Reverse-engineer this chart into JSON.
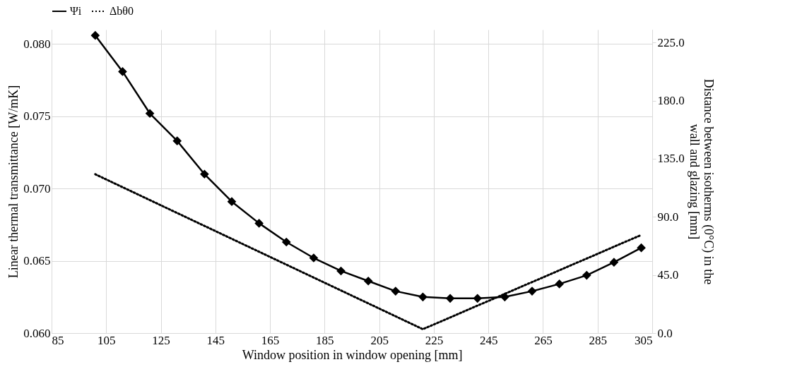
{
  "chart_data": {
    "type": "line",
    "xlabel": "Window position in window opening [mm]",
    "ylabel": "Linear thermal transmittance [W/mK]",
    "y2label": "Distance between isotherms (0°C) in the wall and glazing [mm]",
    "series": [
      {
        "name": "Ψi",
        "axis": "y",
        "color": "#000000",
        "marker": "diamond",
        "line_style": "solid",
        "x": [
          101,
          111,
          121,
          131,
          141,
          151,
          161,
          171,
          181,
          191,
          201,
          211,
          221,
          231,
          241,
          251,
          261,
          271,
          281,
          291,
          301
        ],
        "values": [
          0.0806,
          0.0781,
          0.0752,
          0.0733,
          0.071,
          0.0691,
          0.0676,
          0.0663,
          0.0652,
          0.0643,
          0.0636,
          0.0629,
          0.0625,
          0.0624,
          0.0624,
          0.0625,
          0.0629,
          0.0634,
          0.064,
          0.0649,
          0.0659
        ]
      },
      {
        "name": "Δbθ0",
        "axis": "y2",
        "color": "#000000",
        "marker": "none",
        "line_style": "dotted",
        "x": [
          101,
          221,
          301
        ],
        "values": [
          123,
          3,
          76
        ]
      }
    ],
    "xlim": [
      85,
      305
    ],
    "xticks": [
      85,
      105,
      125,
      145,
      165,
      185,
      205,
      225,
      245,
      265,
      285,
      305
    ],
    "ylim": [
      0.06,
      0.081
    ],
    "yticks": [
      {
        "value": 0.06,
        "label": "0.060"
      },
      0.065,
      {
        "value": 0.07,
        "label": "0.070"
      },
      0.075,
      {
        "value": 0.08,
        "label": "0.080"
      }
    ],
    "y2lim": [
      0,
      235
    ],
    "y2ticks": [
      {
        "value": 0,
        "label": "0.0"
      },
      {
        "value": 45,
        "label": "45.0"
      },
      {
        "value": 90,
        "label": "90.0"
      },
      {
        "value": 135,
        "label": "135.0"
      },
      {
        "value": 180,
        "label": "180.0"
      },
      {
        "value": 225,
        "label": "225.0"
      }
    ],
    "grid": true,
    "legend": "top"
  }
}
